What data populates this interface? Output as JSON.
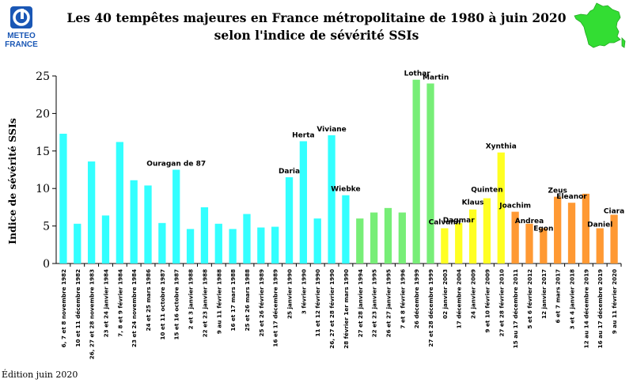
{
  "header": {
    "logo_line1": "METEO",
    "logo_line2": "FRANCE",
    "title_line1": "Les 40 tempêtes majeures en France métropolitaine de 1980 à juin 2020",
    "title_line2": "selon l'indice de sévérité SSIs"
  },
  "footnote": "Édition juin 2020",
  "colors": {
    "cyan": "#33FFFF",
    "green": "#77EE77",
    "yellow": "#FFFF22",
    "orange": "#FF9933",
    "map": "#33DD33"
  },
  "chart_data": {
    "type": "bar",
    "ylabel": "Indice de sévérité SSIs",
    "ylim": [
      0,
      25
    ],
    "yticks": [
      0,
      5,
      10,
      15,
      20,
      25
    ],
    "grid": false,
    "categories": [
      "6, 7 et 8 novembre 1982",
      "10 et 11 décembre 1982",
      "26, 27 et 28 novembre 1983",
      "23 et 24 janvier 1984",
      "7, 8 et 9 février 1984",
      "23 et 24 novembre 1984",
      "24 et 25 mars 1986",
      "10 et 11 octobre 1987",
      "15 et 16 octobre 1987",
      "2 et 3 janvier 1988",
      "22 et 23 janvier 1988",
      "9 au 11 février 1988",
      "16 et 17 mars 1988",
      "25 et 26 mars 1988",
      "25 et 26 février 1989",
      "16 et 17 décembre 1989",
      "25 janvier 1990",
      "3 février 1990",
      "11 et 12 février 1990",
      "26, 27 et 28 février 1990",
      "28 février 1er mars 1990",
      "27 et 28 janvier 1994",
      "22 et 23 janvier 1995",
      "26 et 27 janvier 1995",
      "7 et 8 février 1996",
      "26 décembre 1999",
      "27 et 28 décembre 1999",
      "02 janvier 2003",
      "17 décembre 2004",
      "24 janvier 2009",
      "9 et 10 février 2009",
      "27 et 28 février 2010",
      "15 au 17 décembre 2011",
      "5 et 6 février 2012",
      "12 janvier 2017",
      "6 et 7 mars 2017",
      "3 et 4 janvier 2018",
      "12 au 14 décembre 2019",
      "16 au 17 décembre 2019",
      "9 au 11 février 2020"
    ],
    "values": [
      17.3,
      5.3,
      13.6,
      6.4,
      16.2,
      11.1,
      10.4,
      5.4,
      12.5,
      4.6,
      7.5,
      5.3,
      4.6,
      6.6,
      4.8,
      4.9,
      11.5,
      16.3,
      6.0,
      17.1,
      9.1,
      6.0,
      6.8,
      7.4,
      6.8,
      24.5,
      24.0,
      4.7,
      5.4,
      7.2,
      8.7,
      14.8,
      6.9,
      5.3,
      4.7,
      8.9,
      8.1,
      9.3,
      4.7,
      6.5
    ],
    "bar_colors": [
      "cyan",
      "cyan",
      "cyan",
      "cyan",
      "cyan",
      "cyan",
      "cyan",
      "cyan",
      "cyan",
      "cyan",
      "cyan",
      "cyan",
      "cyan",
      "cyan",
      "cyan",
      "cyan",
      "cyan",
      "cyan",
      "cyan",
      "cyan",
      "cyan",
      "green",
      "green",
      "green",
      "green",
      "green",
      "green",
      "yellow",
      "yellow",
      "yellow",
      "yellow",
      "yellow",
      "orange",
      "orange",
      "orange",
      "orange",
      "orange",
      "orange",
      "orange",
      "orange"
    ],
    "annotations": [
      {
        "index": 8,
        "text": "Ouragan de 87"
      },
      {
        "index": 16,
        "text": "Daria"
      },
      {
        "index": 17,
        "text": "Herta"
      },
      {
        "index": 19,
        "text": "Viviane"
      },
      {
        "index": 20,
        "text": "Wiebke"
      },
      {
        "index": 25,
        "text": "Lothar"
      },
      {
        "index": 26,
        "text": "Martin"
      },
      {
        "index": 27,
        "text": "Calvann"
      },
      {
        "index": 28,
        "text": "Dagmar"
      },
      {
        "index": 29,
        "text": "Klaus"
      },
      {
        "index": 30,
        "text": "Quinten"
      },
      {
        "index": 31,
        "text": "Xynthia"
      },
      {
        "index": 32,
        "text": "Joachim"
      },
      {
        "index": 33,
        "text": "Andrea"
      },
      {
        "index": 34,
        "text": "Egon"
      },
      {
        "index": 35,
        "text": "Zeus"
      },
      {
        "index": 36,
        "text": "Eleanor"
      },
      {
        "index": 38,
        "text": "Daniel"
      },
      {
        "index": 39,
        "text": "Ciara"
      }
    ]
  }
}
